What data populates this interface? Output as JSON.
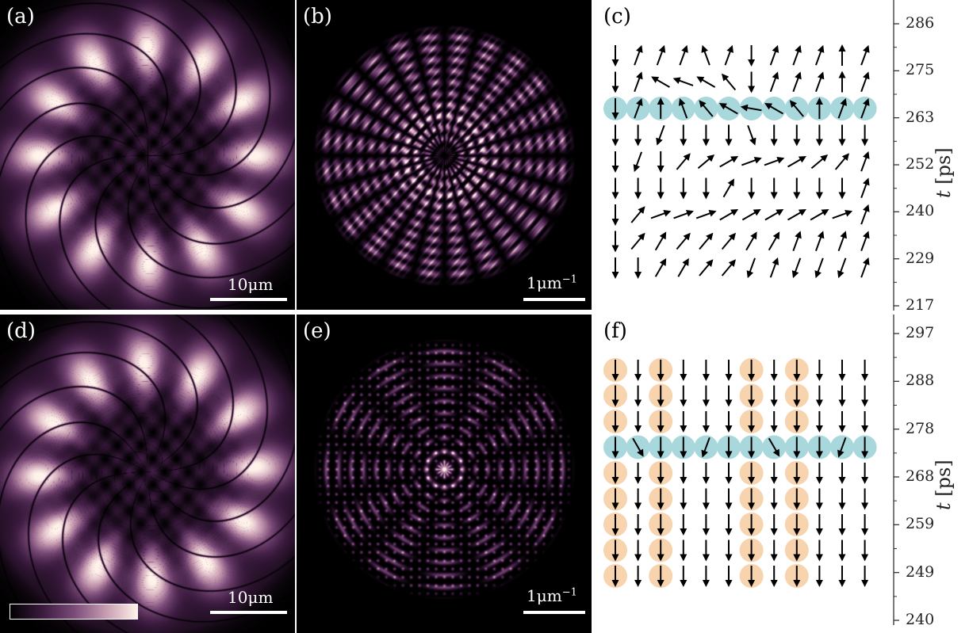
{
  "panels": {
    "a": {
      "label": "(a)",
      "scale_text": "10μm"
    },
    "b": {
      "label": "(b)",
      "scale_text": "1μm",
      "scale_sup": "−1"
    },
    "c": {
      "label": "(c)"
    },
    "d": {
      "label": "(d)",
      "scale_text": "10μm"
    },
    "e": {
      "label": "(e)",
      "scale_text": "1μm",
      "scale_sup": "−1"
    },
    "f": {
      "label": "(f)"
    }
  },
  "axis_top": {
    "title_italic": "t",
    "title_unit": "[ps]",
    "ticks": [
      "286",
      "275",
      "263",
      "252",
      "240",
      "229",
      "217"
    ]
  },
  "axis_bottom": {
    "title_italic": "t",
    "title_unit": "[ps]",
    "ticks": [
      "297",
      "288",
      "278",
      "268",
      "259",
      "249",
      "240"
    ]
  },
  "colors": {
    "highlight_blue": "#a8d8db",
    "highlight_orange": "#f7d3ae",
    "colormap": [
      "#000000",
      "#3a1a3e",
      "#7a4a78",
      "#c69ab0",
      "#fff2ea"
    ]
  },
  "arrows_c_angles_deg": [
    [
      0,
      200,
      200,
      200,
      160,
      200,
      0,
      200,
      200,
      200,
      180,
      200
    ],
    [
      0,
      200,
      120,
      110,
      120,
      140,
      0,
      200,
      200,
      200,
      180,
      200
    ],
    [
      0,
      200,
      180,
      160,
      140,
      120,
      100,
      120,
      140,
      180,
      200,
      200
    ],
    [
      0,
      0,
      20,
      0,
      0,
      0,
      340,
      0,
      0,
      0,
      0,
      0
    ],
    [
      0,
      20,
      0,
      220,
      230,
      240,
      250,
      250,
      240,
      230,
      220,
      200
    ],
    [
      0,
      0,
      0,
      0,
      0,
      210,
      0,
      0,
      0,
      0,
      0,
      200
    ],
    [
      0,
      220,
      250,
      250,
      250,
      240,
      240,
      240,
      240,
      240,
      250,
      200
    ],
    [
      0,
      220,
      210,
      220,
      220,
      220,
      210,
      210,
      200,
      200,
      200,
      200
    ],
    [
      0,
      0,
      210,
      210,
      220,
      220,
      20,
      200,
      20,
      20,
      20,
      200
    ]
  ],
  "arrows_f_angles_deg": [
    [
      0,
      0,
      0,
      0,
      0,
      0,
      0,
      0,
      0,
      0,
      0,
      0
    ],
    [
      0,
      0,
      0,
      0,
      0,
      0,
      0,
      0,
      0,
      0,
      0,
      0
    ],
    [
      0,
      0,
      0,
      0,
      0,
      0,
      0,
      0,
      0,
      0,
      0,
      0
    ],
    [
      0,
      330,
      0,
      0,
      20,
      0,
      0,
      330,
      0,
      0,
      20,
      0
    ],
    [
      0,
      0,
      0,
      0,
      0,
      0,
      0,
      0,
      0,
      0,
      0,
      0
    ],
    [
      0,
      0,
      0,
      0,
      0,
      0,
      0,
      0,
      0,
      0,
      0,
      0
    ],
    [
      0,
      0,
      0,
      0,
      0,
      0,
      0,
      0,
      0,
      0,
      0,
      0
    ],
    [
      0,
      0,
      0,
      0,
      0,
      0,
      0,
      0,
      0,
      0,
      0,
      0
    ],
    [
      0,
      0,
      0,
      0,
      0,
      0,
      0,
      0,
      0,
      0,
      0,
      0
    ]
  ]
}
